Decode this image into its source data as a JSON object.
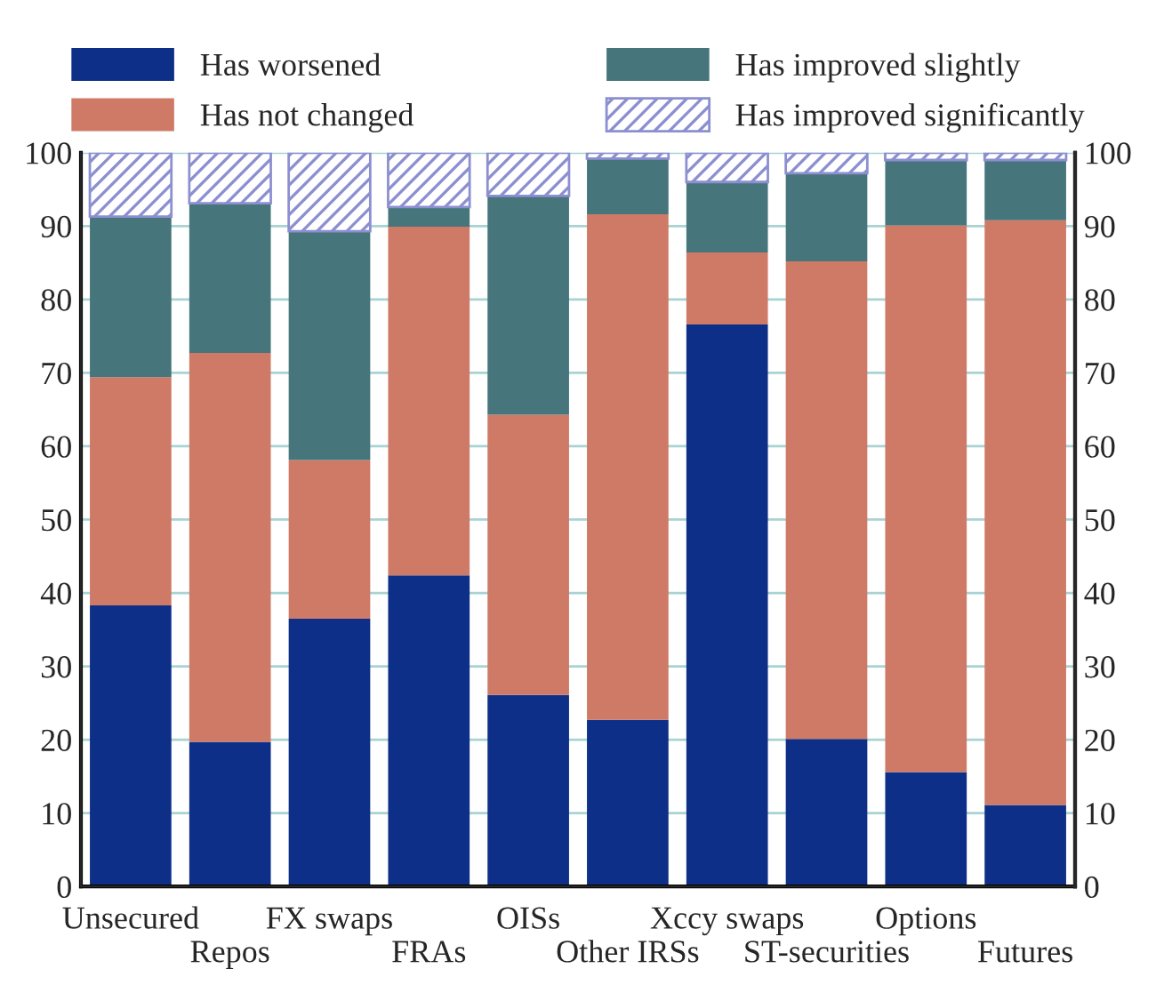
{
  "chart_data": {
    "type": "bar",
    "stacked": true,
    "categories": [
      "Unsecured",
      "Repos",
      "FX swaps",
      "FRAs",
      "OISs",
      "Other IRSs",
      "Xccy swaps",
      "ST-securities",
      "Options",
      "Futures"
    ],
    "series": [
      {
        "name": "Has worsened",
        "color": "#0e2f87",
        "values": [
          38.3,
          19.7,
          36.5,
          42.4,
          26.1,
          22.7,
          76.6,
          20.1,
          15.6,
          11.1
        ]
      },
      {
        "name": "Has not changed",
        "color": "#cf7a66",
        "values": [
          31.1,
          53.0,
          21.6,
          47.5,
          38.2,
          68.9,
          9.8,
          65.1,
          74.5,
          79.7
        ]
      },
      {
        "name": "Has improved slightly",
        "color": "#46757b",
        "values": [
          21.9,
          20.4,
          31.2,
          2.7,
          29.8,
          7.6,
          9.6,
          12.0,
          8.9,
          8.2
        ]
      },
      {
        "name": "Has improved significantly",
        "color": "#8c8fd0",
        "values": [
          8.7,
          6.9,
          10.7,
          7.4,
          5.9,
          0.8,
          4.0,
          2.8,
          1.0,
          1.0
        ]
      }
    ],
    "ylim": [
      0,
      100
    ],
    "yticks": [
      0,
      10,
      20,
      30,
      40,
      50,
      60,
      70,
      80,
      90,
      100
    ],
    "y2lim": [
      0,
      100
    ],
    "y2ticks": [
      0,
      10,
      20,
      30,
      40,
      50,
      60,
      70,
      80,
      90,
      100
    ],
    "grid": "y",
    "legend": "top"
  }
}
